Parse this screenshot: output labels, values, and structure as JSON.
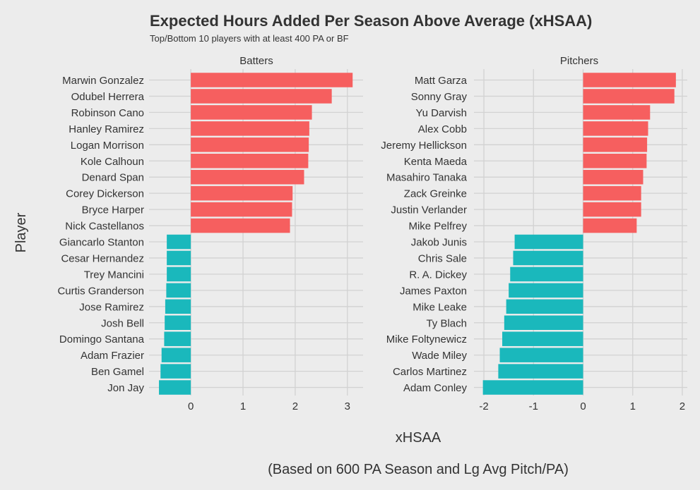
{
  "chart_data": {
    "type": "bar",
    "orientation": "horizontal",
    "title": "Expected Hours Added Per Season Above Average (xHSAA)",
    "subtitle": "Top/Bottom 10 players with at least 400 PA or BF",
    "xlabel": "xHSAA",
    "ylabel": "Player",
    "caption": "(Based on 600 PA Season and Lg Avg Pitch/PA)",
    "grid": true,
    "legend": "none",
    "colors": {
      "positive": "#f65f5f",
      "negative": "#1ab8bc",
      "grid": "#d2d2d2",
      "background": "#ececec"
    },
    "panels": [
      {
        "name": "Batters",
        "xlim": [
          -0.8,
          3.3
        ],
        "xticks": [
          0,
          1,
          2,
          3
        ],
        "categories": [
          "Marwin Gonzalez",
          "Odubel Herrera",
          "Robinson Cano",
          "Hanley Ramirez",
          "Logan Morrison",
          "Kole Calhoun",
          "Denard Span",
          "Corey Dickerson",
          "Bryce Harper",
          "Nick Castellanos",
          "Giancarlo Stanton",
          "Cesar Hernandez",
          "Trey Mancini",
          "Curtis Granderson",
          "Jose Ramirez",
          "Josh Bell",
          "Domingo Santana",
          "Adam Frazier",
          "Ben Gamel",
          "Jon Jay"
        ],
        "values": [
          3.1,
          2.7,
          2.32,
          2.27,
          2.26,
          2.25,
          2.17,
          1.95,
          1.94,
          1.9,
          -0.46,
          -0.46,
          -0.46,
          -0.47,
          -0.49,
          -0.5,
          -0.51,
          -0.56,
          -0.58,
          -0.61
        ]
      },
      {
        "name": "Pitchers",
        "xlim": [
          -2.2,
          2.1
        ],
        "xticks": [
          -2,
          -1,
          0,
          1,
          2
        ],
        "categories": [
          "Matt Garza",
          "Sonny Gray",
          "Yu Darvish",
          "Alex Cobb",
          "Jeremy Hellickson",
          "Kenta Maeda",
          "Masahiro Tanaka",
          "Zack Greinke",
          "Justin Verlander",
          "Mike Pelfrey",
          "Jakob Junis",
          "Chris Sale",
          "R. A. Dickey",
          "James Paxton",
          "Mike Leake",
          "Ty Blach",
          "Mike Foltynewicz",
          "Wade Miley",
          "Carlos Martinez",
          "Adam Conley"
        ],
        "values": [
          1.87,
          1.84,
          1.35,
          1.31,
          1.29,
          1.28,
          1.21,
          1.17,
          1.17,
          1.08,
          -1.38,
          -1.41,
          -1.47,
          -1.5,
          -1.55,
          -1.59,
          -1.63,
          -1.68,
          -1.71,
          -2.02
        ]
      }
    ]
  }
}
